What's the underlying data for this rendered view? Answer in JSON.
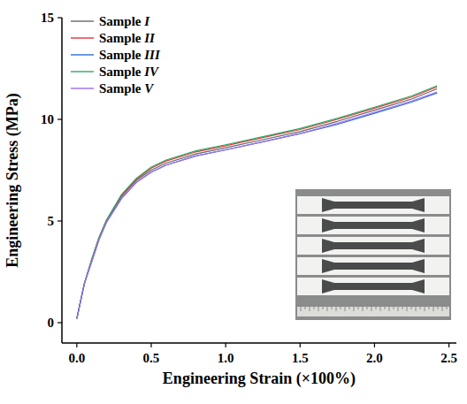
{
  "chart_data": {
    "type": "line",
    "xlabel": "Engineering Strain (×100%)",
    "ylabel": "Engineering Stress (MPa)",
    "x": [
      0,
      0.05,
      0.1,
      0.15,
      0.2,
      0.3,
      0.4,
      0.5,
      0.6,
      0.8,
      1.0,
      1.25,
      1.5,
      1.75,
      2.0,
      2.25,
      2.42
    ],
    "series": [
      {
        "name": "Sample I",
        "color": "#666666",
        "values": [
          0.2,
          1.9,
          3.1,
          4.2,
          5.0,
          6.2,
          7.0,
          7.5,
          7.85,
          8.3,
          8.6,
          9.0,
          9.4,
          9.9,
          10.45,
          11.0,
          11.5
        ]
      },
      {
        "name": "Sample II",
        "color": "#e8323c",
        "values": [
          0.2,
          1.9,
          3.1,
          4.2,
          5.05,
          6.25,
          7.05,
          7.6,
          7.95,
          8.4,
          8.7,
          9.1,
          9.5,
          10.0,
          10.55,
          11.1,
          11.6
        ]
      },
      {
        "name": "Sample III",
        "color": "#2f6fe0",
        "values": [
          0.2,
          1.9,
          3.0,
          4.1,
          4.95,
          6.1,
          6.9,
          7.4,
          7.75,
          8.2,
          8.5,
          8.9,
          9.3,
          9.75,
          10.3,
          10.85,
          11.3
        ]
      },
      {
        "name": "Sample IV",
        "color": "#2ca860",
        "values": [
          0.2,
          1.9,
          3.1,
          4.2,
          5.05,
          6.3,
          7.1,
          7.65,
          8.0,
          8.45,
          8.75,
          9.15,
          9.55,
          10.05,
          10.6,
          11.15,
          11.65
        ]
      },
      {
        "name": "Sample V",
        "color": "#9a6cf0",
        "values": [
          0.2,
          1.9,
          3.0,
          4.1,
          4.95,
          6.1,
          6.9,
          7.4,
          7.75,
          8.2,
          8.5,
          8.9,
          9.3,
          9.8,
          10.35,
          10.9,
          11.35
        ]
      }
    ],
    "xlim": [
      -0.1,
      2.55
    ],
    "ylim": [
      -1,
      15
    ],
    "xticks": [
      {
        "value": 0,
        "label": "0.0"
      },
      {
        "value": 0.5,
        "label": "0.5"
      },
      {
        "value": 1,
        "label": "1.0"
      },
      {
        "value": 1.5,
        "label": "1.5"
      },
      {
        "value": 2,
        "label": "2.0"
      },
      {
        "value": 2.5,
        "label": "2.5"
      }
    ],
    "yticks": [
      0,
      5,
      10,
      15
    ],
    "grid": false,
    "legend": "top-left"
  }
}
